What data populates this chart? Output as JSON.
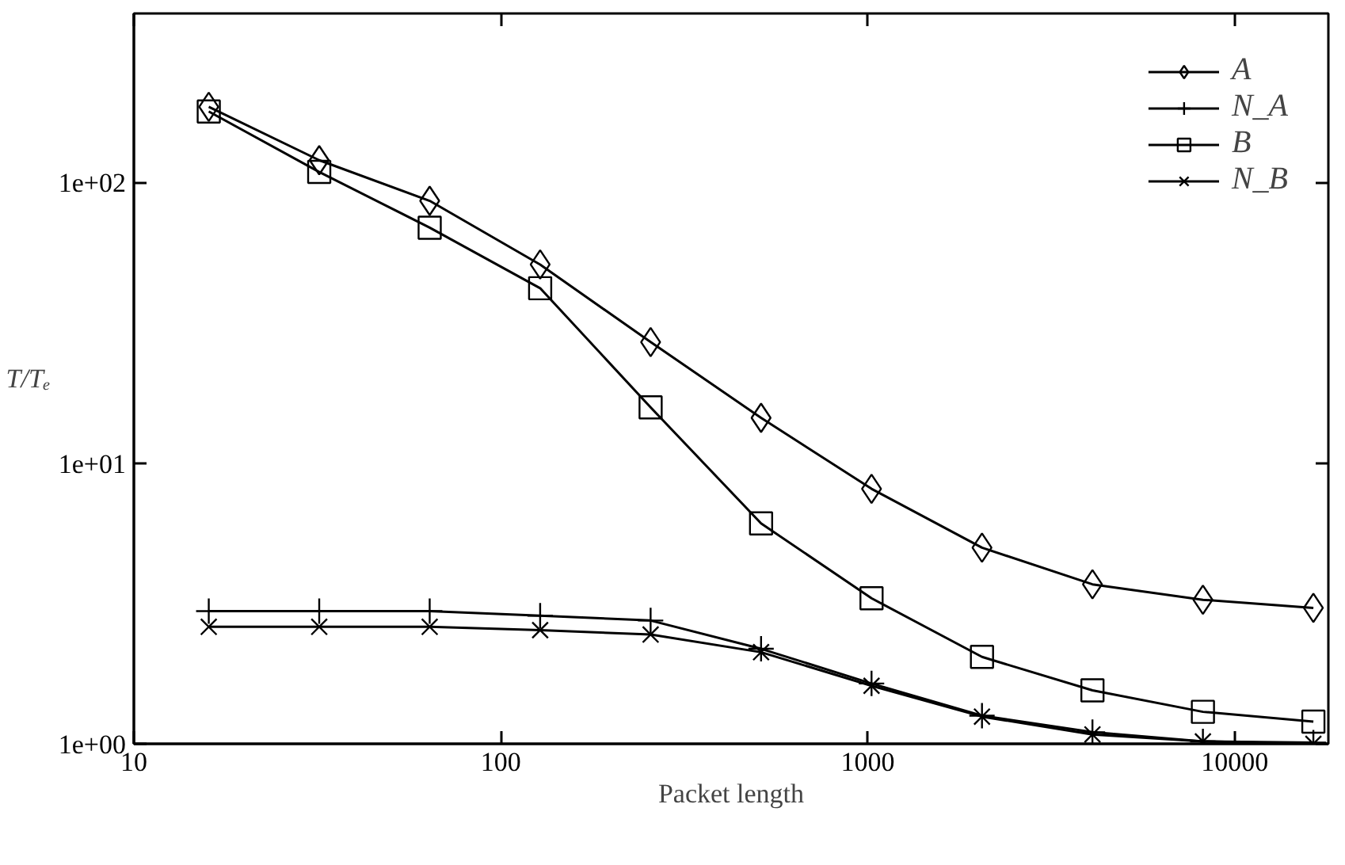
{
  "chart_data": {
    "type": "line",
    "xlabel": "Packet length",
    "ylabel": "T/Tₑ",
    "x": [
      16,
      32,
      64,
      128,
      256,
      512,
      1024,
      2048,
      4096,
      8192,
      16384
    ],
    "series": [
      {
        "name": "A",
        "color": "#000000",
        "marker": "diamond",
        "values": [
          186,
          120,
          86,
          51,
          27,
          14.5,
          8.1,
          5.0,
          3.7,
          3.26,
          3.05
        ]
      },
      {
        "name": "N_A",
        "color": "#000000",
        "marker": "cross",
        "values": [
          2.97,
          2.97,
          2.97,
          2.86,
          2.75,
          2.18,
          1.64,
          1.26,
          1.1,
          1.02,
          1.01
        ]
      },
      {
        "name": "B",
        "color": "#000000",
        "marker": "square",
        "values": [
          179,
          109,
          69,
          42,
          15.8,
          6.1,
          3.3,
          2.04,
          1.55,
          1.3,
          1.2
        ]
      },
      {
        "name": "N_B",
        "color": "#000000",
        "marker": "x",
        "values": [
          2.61,
          2.61,
          2.61,
          2.54,
          2.45,
          2.12,
          1.61,
          1.25,
          1.08,
          1.02,
          1.0
        ]
      }
    ],
    "log": "xy",
    "xlim": [
      10,
      18000
    ],
    "ylim": [
      1,
      400
    ],
    "xticks": [
      10,
      100,
      1000,
      10000
    ],
    "yticks": [
      {
        "value": 1,
        "label": "1e+00"
      },
      {
        "value": 10,
        "label": "1e+01"
      },
      {
        "value": 100,
        "label": "1e+02"
      }
    ],
    "legend": "top right",
    "grid": false,
    "line_style": "solid"
  }
}
